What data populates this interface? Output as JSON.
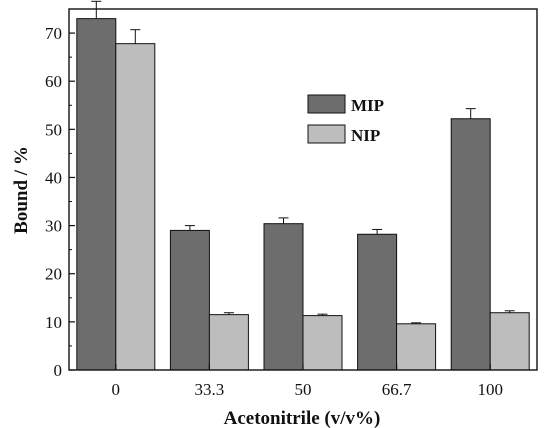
{
  "chart_data": {
    "type": "bar",
    "categories": [
      "0",
      "33.3",
      "50",
      "66.7",
      "100"
    ],
    "series": [
      {
        "name": "MIP",
        "values": [
          73.0,
          29.0,
          30.4,
          28.2,
          52.2
        ],
        "errors": [
          3.6,
          1.0,
          1.2,
          1.0,
          2.1
        ],
        "color": "#6d6d6d"
      },
      {
        "name": "NIP",
        "values": [
          67.8,
          11.5,
          11.3,
          9.6,
          11.9
        ],
        "errors": [
          2.9,
          0.4,
          0.3,
          0.2,
          0.4
        ],
        "color": "#bdbdbd"
      }
    ],
    "xlabel": "Acetonitrile (v/v%)",
    "ylabel": "Bound / %",
    "ylim": [
      0,
      75
    ],
    "yticks": [
      0,
      10,
      20,
      30,
      40,
      50,
      60,
      70
    ],
    "grid": false,
    "legend_position": "upper-center"
  }
}
